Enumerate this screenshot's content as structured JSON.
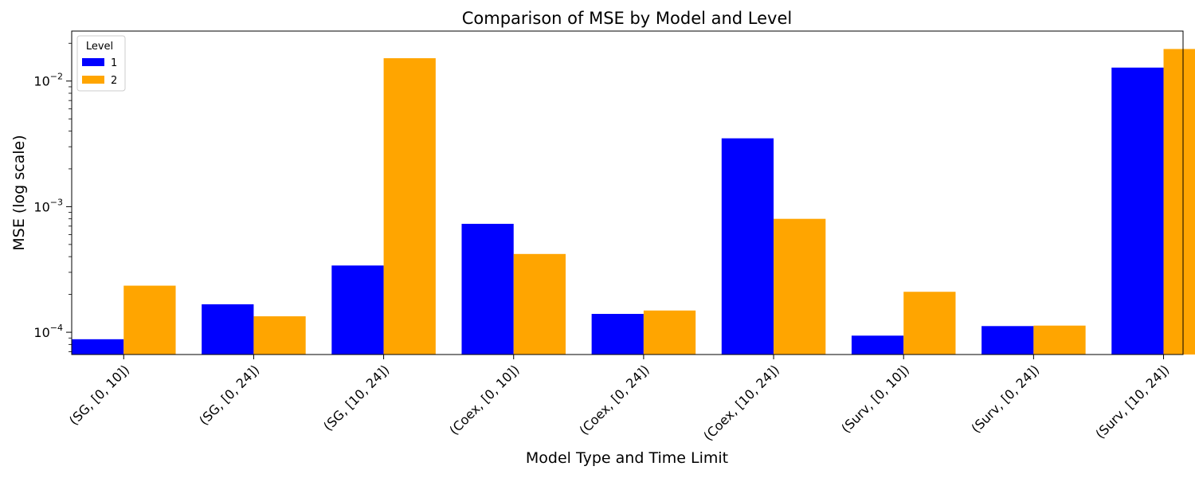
{
  "chart_data": {
    "type": "bar",
    "title": "Comparison of MSE by Model and Level",
    "xlabel": "Model Type and Time Limit",
    "ylabel": "MSE (log scale)",
    "yscale": "log",
    "ylim": [
      6.65e-05,
      0.025
    ],
    "yticks": [
      {
        "value": 0.0001,
        "base": "10",
        "exp": "−4"
      },
      {
        "value": 0.001,
        "base": "10",
        "exp": "−3"
      },
      {
        "value": 0.01,
        "base": "10",
        "exp": "−2"
      }
    ],
    "categories": [
      "(SG, [0, 10])",
      "(SG, [0, 24])",
      "(SG, [10, 24])",
      "(Coex, [0, 10])",
      "(Coex, [0, 24])",
      "(Coex, [10, 24])",
      "(Surv, [0, 10])",
      "(Surv, [0, 24])",
      "(Surv, [10, 24])"
    ],
    "series": [
      {
        "name": "1",
        "color": "#0000ff",
        "values": [
          8.8e-05,
          0.000167,
          0.00034,
          0.00073,
          0.00014,
          0.0035,
          9.4e-05,
          0.000112,
          0.0128
        ]
      },
      {
        "name": "2",
        "color": "#ffa500",
        "values": [
          0.000235,
          0.000134,
          0.0152,
          0.00042,
          0.000149,
          0.0008,
          0.00021,
          0.000113,
          0.018
        ]
      }
    ],
    "legend": {
      "title": "Level",
      "placement": "top-left"
    },
    "grid": false
  }
}
